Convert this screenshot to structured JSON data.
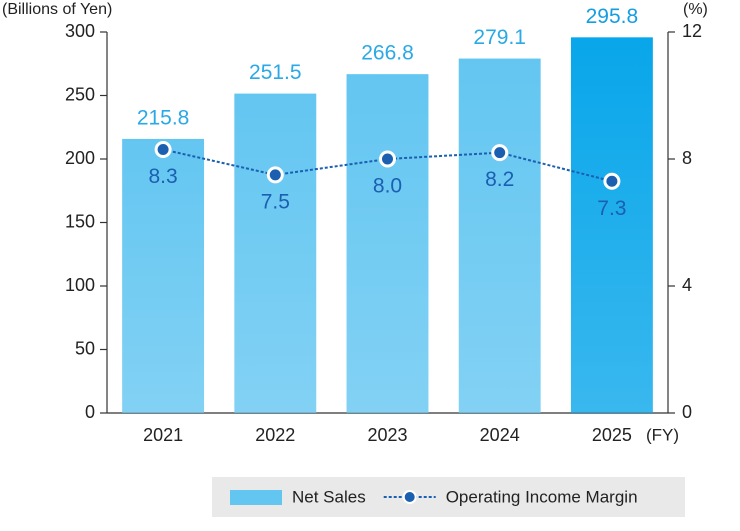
{
  "chart_data": {
    "type": "bar",
    "y_label": "(Billions of Yen)",
    "y2_label": "(%)",
    "x_unit": "(FY)",
    "categories": [
      "2021",
      "2022",
      "2023",
      "2024",
      "2025"
    ],
    "series": [
      {
        "name": "Net Sales",
        "type": "bar",
        "colors": [
          "#63c6f1",
          "#63c6f1",
          "#63c6f1",
          "#63c6f1",
          "#08a6ea"
        ],
        "label_colors": [
          "#2aa9e6",
          "#2aa9e6",
          "#2aa9e6",
          "#2aa9e6",
          "#139ee3"
        ],
        "color": "#63c6f1",
        "values": [
          215.8,
          251.5,
          266.8,
          279.1,
          295.8
        ]
      },
      {
        "name": "Operating Income Margin",
        "type": "line",
        "axis": "y2",
        "color": "#1b5fb0",
        "values": [
          8.3,
          7.5,
          8.0,
          8.2,
          7.3
        ],
        "value_labels": [
          "8.3",
          "7.5",
          "8.0",
          "8.2",
          "7.3"
        ]
      }
    ],
    "ylim": [
      0,
      300
    ],
    "yticks": [
      0,
      50,
      100,
      150,
      200,
      250,
      300
    ],
    "y2lim": [
      0,
      12
    ],
    "y2ticks": [
      0,
      4,
      8,
      12
    ],
    "grid": false
  }
}
